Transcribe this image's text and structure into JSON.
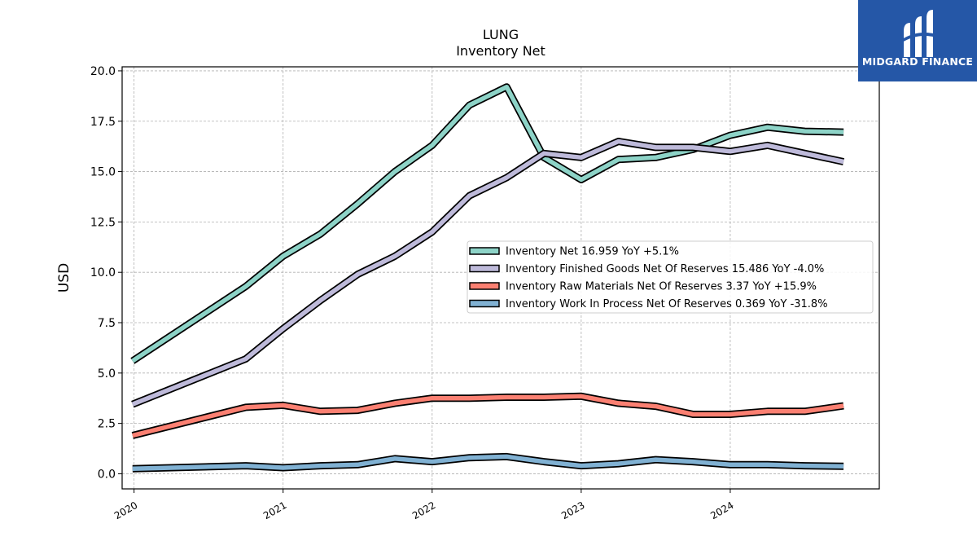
{
  "title": "LUNG",
  "subtitle": "Inventory Net",
  "brand": {
    "name": "MIDGARD FINANCE",
    "color": "#2557a7"
  },
  "chart_data": {
    "type": "line",
    "ylabel": "USD",
    "xlabel": "",
    "ylim": [
      -0.75,
      20.2
    ],
    "xlim": [
      2019.92,
      2025.0
    ],
    "grid": true,
    "legend_position": "center-right",
    "x_ticks": [
      2020,
      2021,
      2022,
      2023,
      2024
    ],
    "x_tick_labels": [
      "2020",
      "2021",
      "2022",
      "2023",
      "2024"
    ],
    "y_ticks": [
      0.0,
      2.5,
      5.0,
      7.5,
      10.0,
      12.5,
      15.0,
      17.5,
      20.0
    ],
    "y_tick_labels": [
      "0.0",
      "2.5",
      "5.0",
      "7.5",
      "10.0",
      "12.5",
      "15.0",
      "17.5",
      "20.0"
    ],
    "x": [
      2019.99,
      2020.75,
      2021.0,
      2021.25,
      2021.5,
      2021.75,
      2022.0,
      2022.25,
      2022.5,
      2022.75,
      2023.0,
      2023.25,
      2023.5,
      2023.75,
      2024.0,
      2024.25,
      2024.5,
      2024.76
    ],
    "series": [
      {
        "name": "Inventory Net  16.959 YoY +5.1%",
        "color": "#8dd3c7",
        "values": [
          5.6,
          9.3,
          10.8,
          11.9,
          13.4,
          15.0,
          16.3,
          18.3,
          19.2,
          15.7,
          14.6,
          15.6,
          15.7,
          16.1,
          16.8,
          17.2,
          17.0,
          16.96
        ]
      },
      {
        "name": "Inventory Finished Goods Net Of Reserves  15.486 YoY -4.0%",
        "color": "#bebada",
        "values": [
          3.45,
          5.7,
          7.2,
          8.6,
          9.9,
          10.8,
          12.0,
          13.8,
          14.7,
          15.9,
          15.7,
          16.5,
          16.2,
          16.2,
          16.0,
          16.3,
          15.9,
          15.49
        ]
      },
      {
        "name": "Inventory Raw Materials Net Of Reserves  3.37 YoY +15.9%",
        "color": "#fb8072",
        "values": [
          1.9,
          3.3,
          3.4,
          3.1,
          3.15,
          3.5,
          3.75,
          3.75,
          3.8,
          3.8,
          3.85,
          3.5,
          3.35,
          2.95,
          2.95,
          3.1,
          3.1,
          3.37
        ]
      },
      {
        "name": "Inventory Work In Process Net Of Reserves  0.369 YoY -31.8%",
        "color": "#80b1d3",
        "values": [
          0.25,
          0.4,
          0.3,
          0.4,
          0.45,
          0.75,
          0.6,
          0.8,
          0.85,
          0.6,
          0.4,
          0.5,
          0.7,
          0.6,
          0.45,
          0.45,
          0.4,
          0.37
        ]
      }
    ]
  }
}
